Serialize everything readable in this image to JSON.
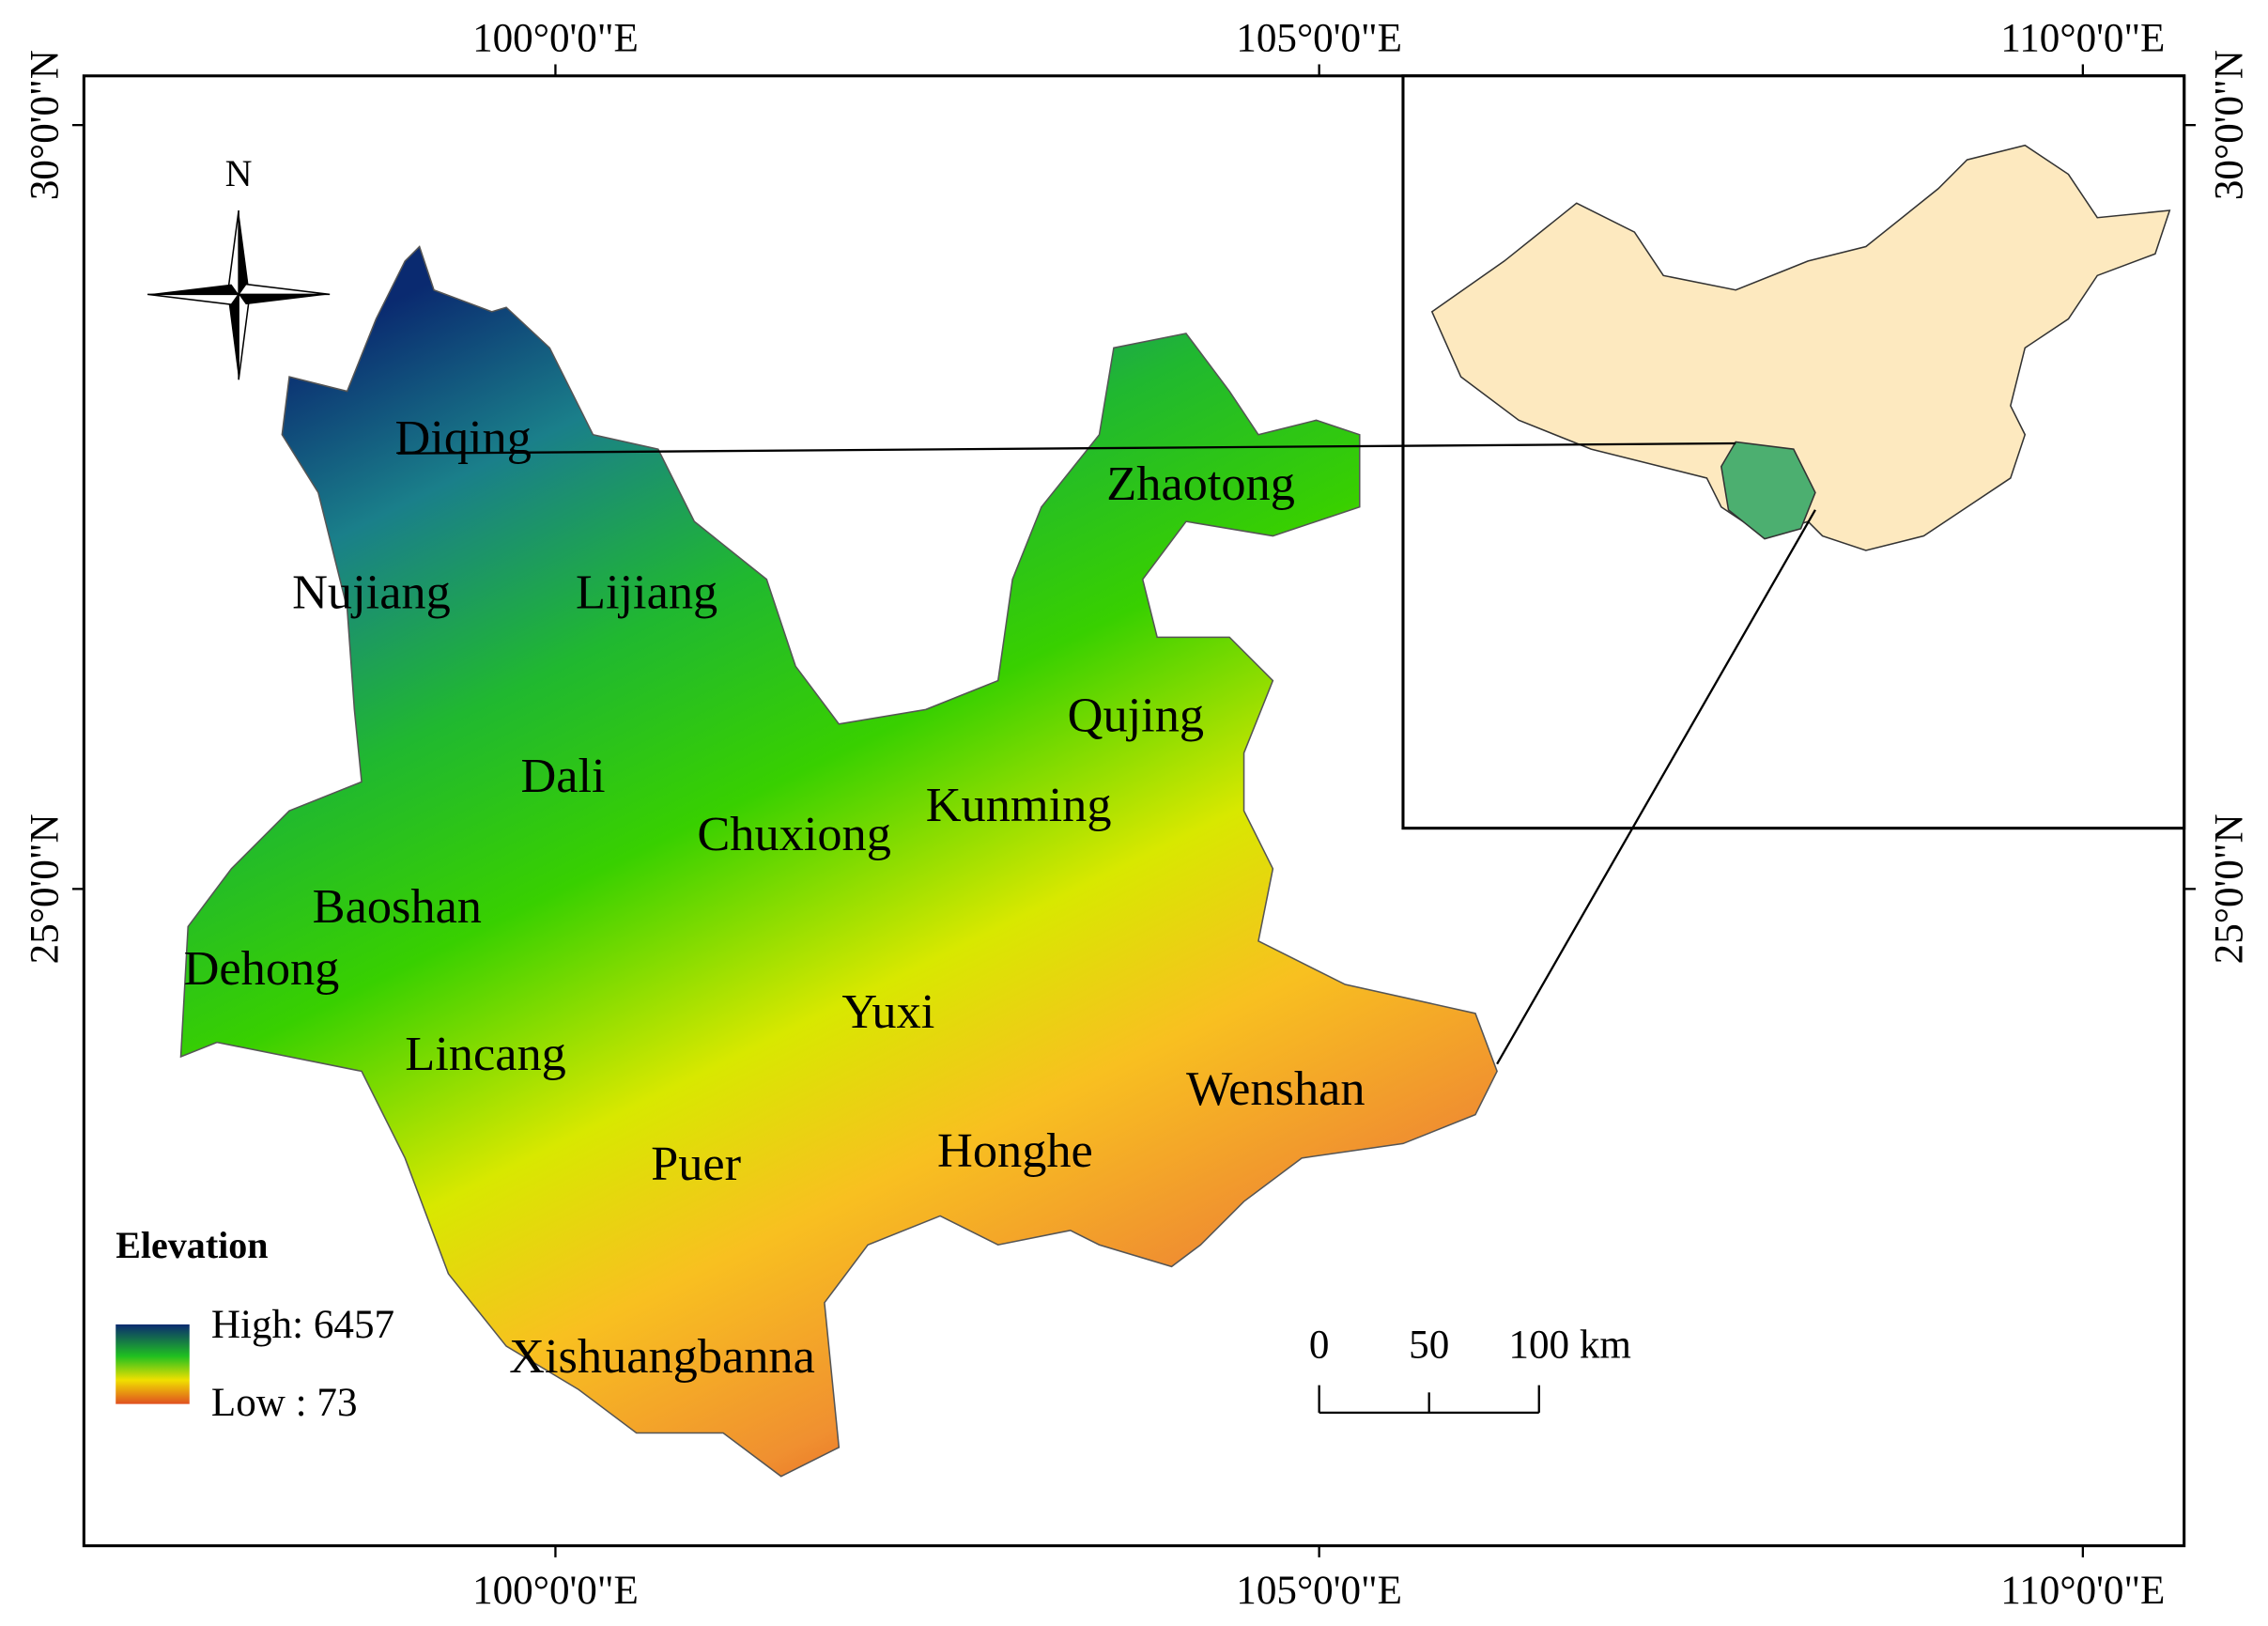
{
  "grid_labels": {
    "top": [
      "100°0'0\"E",
      "105°0'0\"E",
      "110°0'0\"E"
    ],
    "bottom": [
      "100°0'0\"E",
      "105°0'0\"E",
      "110°0'0\"E"
    ],
    "left": [
      "30°0'0\"N",
      "25°0'0\"N"
    ],
    "right": [
      "30°0'0\"N",
      "25°0'0\"N"
    ]
  },
  "north_arrow": "N",
  "regions": [
    "Diqing",
    "Zhaotong",
    "Nujiang",
    "Lijiang",
    "Qujing",
    "Dali",
    "Kunming",
    "Chuxiong",
    "Baoshan",
    "Dehong",
    "Yuxi",
    "Lincang",
    "Wenshan",
    "Honghe",
    "Puer",
    "Xishuangbanna"
  ],
  "legend": {
    "title": "Elevation",
    "high": "High: 6457",
    "low": "Low : 73"
  },
  "scale_bar": {
    "labels": [
      "0",
      "50",
      "100 km"
    ]
  }
}
